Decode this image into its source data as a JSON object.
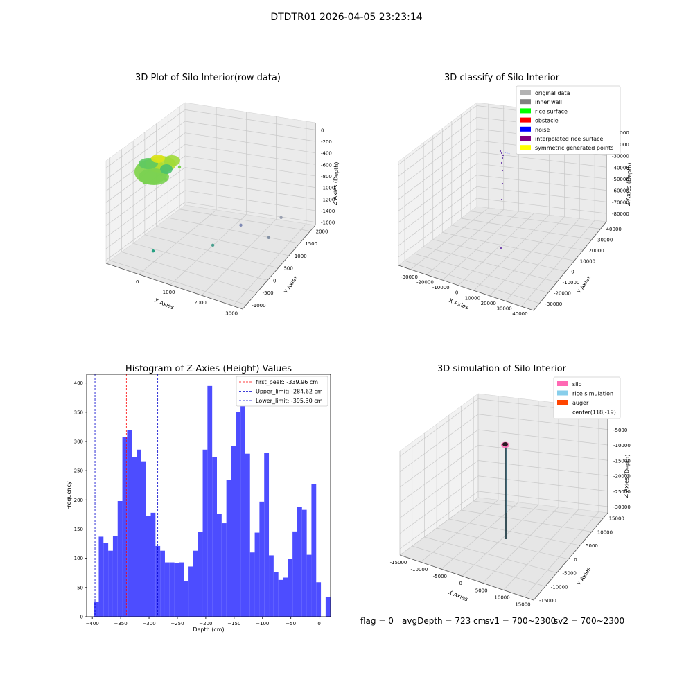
{
  "figure": {
    "suptitle": "DTDTR01 2026-04-05 23:23:14",
    "status": {
      "flag": "flag = 0",
      "avg_depth": "avgDepth = 723 cm",
      "sv1": "sv1 = 700~2300",
      "sv2": "sv2 = 700~2300"
    }
  },
  "colors": {
    "hist_bar": "#4d4dff",
    "first_peak_line": "#ff0000",
    "limit_lines": "#0000cc",
    "pane_left": "#f2f2f2",
    "pane_right": "#ebebeb",
    "pane_floor": "#e6e6e6"
  },
  "chart_data": [
    {
      "type": "scatter",
      "projection": "3d",
      "title": "3D Plot of Silo Interior(row data)",
      "xlabel": "X Axies",
      "ylabel": "Y Axies",
      "zlabel": "Z Axies (Depth)",
      "xticks": [
        "0",
        "1000",
        "2000",
        "3000"
      ],
      "yticks": [
        "-1000",
        "-500",
        "0",
        "500",
        "1000",
        "1500",
        "2000"
      ],
      "zticks": [
        "0",
        "-200",
        "-400",
        "-600",
        "-800",
        "-1000",
        "-1200",
        "-1400",
        "-1600"
      ],
      "grid": true,
      "colormap": "viridis",
      "series": [
        {
          "points": [
            {
              "x": 3200,
              "y": 1300,
              "z": -1500
            },
            {
              "x": 3250,
              "y": 1800,
              "z": -1350
            },
            {
              "x": 2450,
              "y": -200,
              "z": -1150
            },
            {
              "x": 2500,
              "y": 1000,
              "z": -1250
            },
            {
              "x": 600,
              "y": -300,
              "z": -1500
            }
          ]
        }
      ]
    },
    {
      "type": "scatter",
      "projection": "3d",
      "title": "3D classify of Silo Interior",
      "xlabel": "X Axies",
      "ylabel": "Y Axies",
      "zlabel": "Z Axies (Depth)",
      "xticks": [
        "-30000",
        "-20000",
        "-10000",
        "0",
        "10000",
        "20000",
        "30000",
        "40000"
      ],
      "yticks": [
        "-30000",
        "-20000",
        "-10000",
        "0",
        "10000",
        "20000",
        "30000",
        "40000"
      ],
      "zticks": [
        "0",
        "-10000",
        "-20000",
        "-30000",
        "-40000",
        "-50000",
        "-60000",
        "-70000",
        "-80000"
      ],
      "grid": true,
      "legend_position": "top-right",
      "legend": [
        {
          "label": "original data",
          "color": "#b3b3b3"
        },
        {
          "label": "inner wall",
          "color": "#808080"
        },
        {
          "label": "rice surface",
          "color": "#00ff00"
        },
        {
          "label": "obstacle",
          "color": "#ff0000"
        },
        {
          "label": "noise",
          "color": "#0000ff"
        },
        {
          "label": "interpolated rice surface",
          "color": "#800080"
        },
        {
          "label": "symmetric generated points",
          "color": "#ffff00"
        }
      ]
    },
    {
      "type": "bar",
      "title": "Histogram of Z-Axies (Height) Values",
      "xlabel": "Depth (cm)",
      "ylabel": "Frequency",
      "xlim": [
        -410,
        20
      ],
      "ylim": [
        0,
        415
      ],
      "xticks": [
        -400,
        -350,
        -300,
        -250,
        -200,
        -150,
        -100,
        -50,
        0
      ],
      "yticks": [
        0,
        50,
        100,
        150,
        200,
        250,
        300,
        350,
        400
      ],
      "bin_width": 8.333,
      "bin_start": -397,
      "values": [
        25,
        137,
        126,
        113,
        138,
        198,
        308,
        320,
        273,
        286,
        266,
        173,
        178,
        121,
        113,
        93,
        93,
        92,
        93,
        61,
        86,
        113,
        145,
        286,
        395,
        273,
        176,
        160,
        234,
        292,
        350,
        390,
        279,
        110,
        144,
        197,
        281,
        105,
        77,
        63,
        67,
        99,
        146,
        188,
        183,
        106,
        227,
        59,
        0,
        34
      ],
      "reference_lines": [
        {
          "label": "first_peak: -339.96 cm",
          "x": -339.96,
          "color": "#ff0000"
        },
        {
          "label": "Upper_limit: -284.62 cm",
          "x": -284.62,
          "color": "#0000cc"
        },
        {
          "label": "Lower_limit: -395.30 cm",
          "x": -395.3,
          "color": "#0000cc"
        }
      ],
      "legend_position": "top-right",
      "grid": false
    },
    {
      "type": "line",
      "projection": "3d",
      "title": "3D simulation of Silo Interior",
      "xlabel": "X Axies",
      "ylabel": "Y Axies",
      "zlabel": "Z Axies (Depth)",
      "xticks": [
        "-15000",
        "-10000",
        "-5000",
        "0",
        "5000",
        "10000",
        "15000"
      ],
      "yticks": [
        "-15000",
        "-10000",
        "-5000",
        "0",
        "5000",
        "10000",
        "15000"
      ],
      "zticks": [
        "0",
        "-5000",
        "-10000",
        "-15000",
        "-20000",
        "-25000",
        "-30000"
      ],
      "grid": true,
      "legend_position": "top-right",
      "legend": [
        {
          "label": "silo",
          "color": "#ff69b4"
        },
        {
          "label": "rice simulation",
          "color": "#87ceeb"
        },
        {
          "label": "auger",
          "color": "#ff4500"
        },
        {
          "label": "center(118,-19)",
          "color": ""
        }
      ]
    }
  ]
}
